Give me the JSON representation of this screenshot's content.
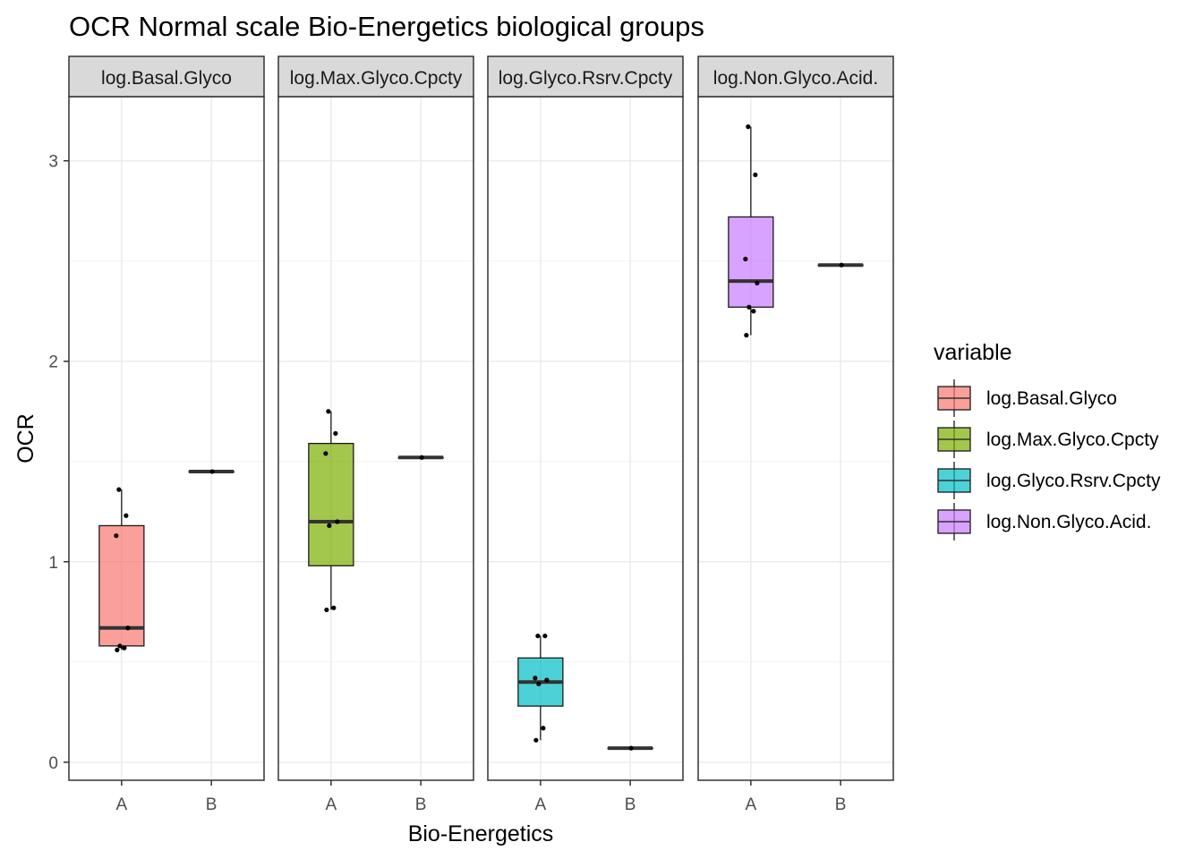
{
  "chart_data": {
    "type": "boxplot",
    "title": "OCR Normal scale Bio-Energetics biological groups",
    "xlabel": "Bio-Energetics",
    "ylabel": "OCR",
    "categories": [
      "A",
      "B"
    ],
    "y_ticks": [
      0,
      1,
      2,
      3
    ],
    "ylim": [
      -0.09,
      3.32
    ],
    "grid": true,
    "legend": {
      "title": "variable",
      "position": "right",
      "entries": [
        "log.Basal.Glyco",
        "log.Max.Glyco.Cpcty",
        "log.Glyco.Rsrv.Cpcty",
        "log.Non.Glyco.Acid."
      ]
    },
    "panels": [
      {
        "label": "log.Basal.Glyco",
        "color": "#F8766D",
        "boxes": [
          {
            "category": "A",
            "min": 0.56,
            "q1": 0.58,
            "median": 0.67,
            "q3": 1.18,
            "max": 1.36
          },
          {
            "category": "B",
            "min": 1.45,
            "q1": 1.45,
            "median": 1.45,
            "q3": 1.45,
            "max": 1.45
          }
        ],
        "points": [
          {
            "category": "A",
            "y": 1.36
          },
          {
            "category": "A",
            "y": 1.23
          },
          {
            "category": "A",
            "y": 1.13
          },
          {
            "category": "A",
            "y": 0.67
          },
          {
            "category": "A",
            "y": 0.58
          },
          {
            "category": "A",
            "y": 0.57
          },
          {
            "category": "A",
            "y": 0.56
          },
          {
            "category": "B",
            "y": 1.45
          }
        ]
      },
      {
        "label": "log.Max.Glyco.Cpcty",
        "color": "#7CAE00",
        "boxes": [
          {
            "category": "A",
            "min": 0.76,
            "q1": 0.98,
            "median": 1.2,
            "q3": 1.59,
            "max": 1.75
          },
          {
            "category": "B",
            "min": 1.52,
            "q1": 1.52,
            "median": 1.52,
            "q3": 1.52,
            "max": 1.52
          }
        ],
        "points": [
          {
            "category": "A",
            "y": 1.75
          },
          {
            "category": "A",
            "y": 1.64
          },
          {
            "category": "A",
            "y": 1.54
          },
          {
            "category": "A",
            "y": 1.2
          },
          {
            "category": "A",
            "y": 1.18
          },
          {
            "category": "A",
            "y": 0.77
          },
          {
            "category": "A",
            "y": 0.76
          },
          {
            "category": "B",
            "y": 1.52
          }
        ]
      },
      {
        "label": "log.Glyco.Rsrv.Cpcty",
        "color": "#00BFC4",
        "boxes": [
          {
            "category": "A",
            "min": 0.11,
            "q1": 0.28,
            "median": 0.4,
            "q3": 0.52,
            "max": 0.63
          },
          {
            "category": "B",
            "min": 0.07,
            "q1": 0.07,
            "median": 0.07,
            "q3": 0.07,
            "max": 0.07
          }
        ],
        "points": [
          {
            "category": "A",
            "y": 0.63
          },
          {
            "category": "A",
            "y": 0.63
          },
          {
            "category": "A",
            "y": 0.42
          },
          {
            "category": "A",
            "y": 0.41
          },
          {
            "category": "A",
            "y": 0.39
          },
          {
            "category": "A",
            "y": 0.17
          },
          {
            "category": "A",
            "y": 0.11
          },
          {
            "category": "B",
            "y": 0.07
          }
        ]
      },
      {
        "label": "log.Non.Glyco.Acid.",
        "color": "#C77CFF",
        "boxes": [
          {
            "category": "A",
            "min": 2.13,
            "q1": 2.27,
            "median": 2.4,
            "q3": 2.72,
            "max": 3.17
          },
          {
            "category": "B",
            "min": 2.48,
            "q1": 2.48,
            "median": 2.48,
            "q3": 2.48,
            "max": 2.48
          }
        ],
        "points": [
          {
            "category": "A",
            "y": 3.17
          },
          {
            "category": "A",
            "y": 2.93
          },
          {
            "category": "A",
            "y": 2.51
          },
          {
            "category": "A",
            "y": 2.39
          },
          {
            "category": "A",
            "y": 2.27
          },
          {
            "category": "A",
            "y": 2.25
          },
          {
            "category": "A",
            "y": 2.13
          },
          {
            "category": "B",
            "y": 2.48
          }
        ]
      }
    ]
  }
}
